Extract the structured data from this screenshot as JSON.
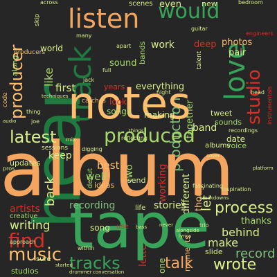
{
  "palette": {
    "background": "#262626",
    "dark_green": "#1f7a3f",
    "green": "#3aa35a",
    "light_green": "#a6d96a",
    "pale_green": "#d9ef8b",
    "orange": "#f4a560",
    "light_orange": "#fdbf6f",
    "red": "#d73027",
    "dark_red": "#b2182b",
    "grey_green": "#7fbf7b"
  },
  "words": {
    "hear": "hear",
    "album": "album",
    "tape": "tape",
    "notes": "notes",
    "listen": "listen",
    "would": "would",
    "love": "love",
    "track": "track",
    "studio": "studio",
    "latest": "latest",
    "produced": "produced",
    "producer": "producer",
    "find": "find",
    "music": "music",
    "tracks": "tracks",
    "talk": "talk",
    "wrote": "wrote",
    "writing": "writing",
    "artists": "artists",
    "process": "process",
    "record": "record",
    "make": "make",
    "behind": "behind",
    "thanks": "thanks",
    "stories": "stories",
    "let": "let",
    "recording": "recording",
    "production": "production",
    "back": "back",
    "keep": "keep",
    "best": "best",
    "well": "well",
    "two": "two",
    "send": "send",
    "working": "working",
    "ideas": "ideas",
    "band": "band",
    "date": "date",
    "voice": "voice",
    "albums": "albums",
    "sounds": "sounds",
    "different": "different",
    "thoughts": "thoughts",
    "first": "first",
    "years": "years",
    "everything": "everything",
    "look": "look",
    "songs": "songs",
    "making": "making",
    "sound": "sound",
    "like": "like",
    "work": "work",
    "deep": "deep",
    "photos": "photos",
    "pair": "pair",
    "world": "world",
    "scenes": "scenes",
    "even": "even",
    "new": "new",
    "bands": "bands",
    "together": "together",
    "updates": "updates",
    "sessions": "sessions",
    "song": "song",
    "use": "use",
    "life": "life",
    "creative": "creative",
    "studios": "studios",
    "sure": "sure",
    "catches": "catches",
    "along": "along",
    "producers": "producers",
    "debut": "debut",
    "season": "season",
    "approach": "approach",
    "code": "code",
    "first_small": "engineers",
    "skip": "skip",
    "guitar": "guitar",
    "bedroom": "bedroom",
    "across": "across",
    "jack": "jack",
    "tweet": "tweet",
    "moments": "moments",
    "slide": "slide",
    "letter": "letter",
    "one": "one",
    "full": "full",
    "talent": "talent",
    "inspiration": "inspiration",
    "instrumentals": "instrumentals",
    "recordings": "recordings",
    "reflecting": "reflecting",
    "digging": "digging",
    "fascinating": "fascinating",
    "apart": "apart",
    "many": "many",
    "night": "night",
    "within": "within",
    "drummer": "drummer",
    "conversation": "conversation",
    "never": "never",
    "trio": "trio",
    "bass": "bass",
    "joe": "joe",
    "thing": "thing",
    "mix": "mix",
    "pros": "pros",
    "audio": "audio",
    "techniques": "techniques",
    "things": "things",
    "cover": "cover",
    "started": "started",
    "lyrics": "lyrics",
    "head": "head",
    "alongside": "alongside",
    "breakdowns": "breakdowns",
    "platform": "platform"
  }
}
